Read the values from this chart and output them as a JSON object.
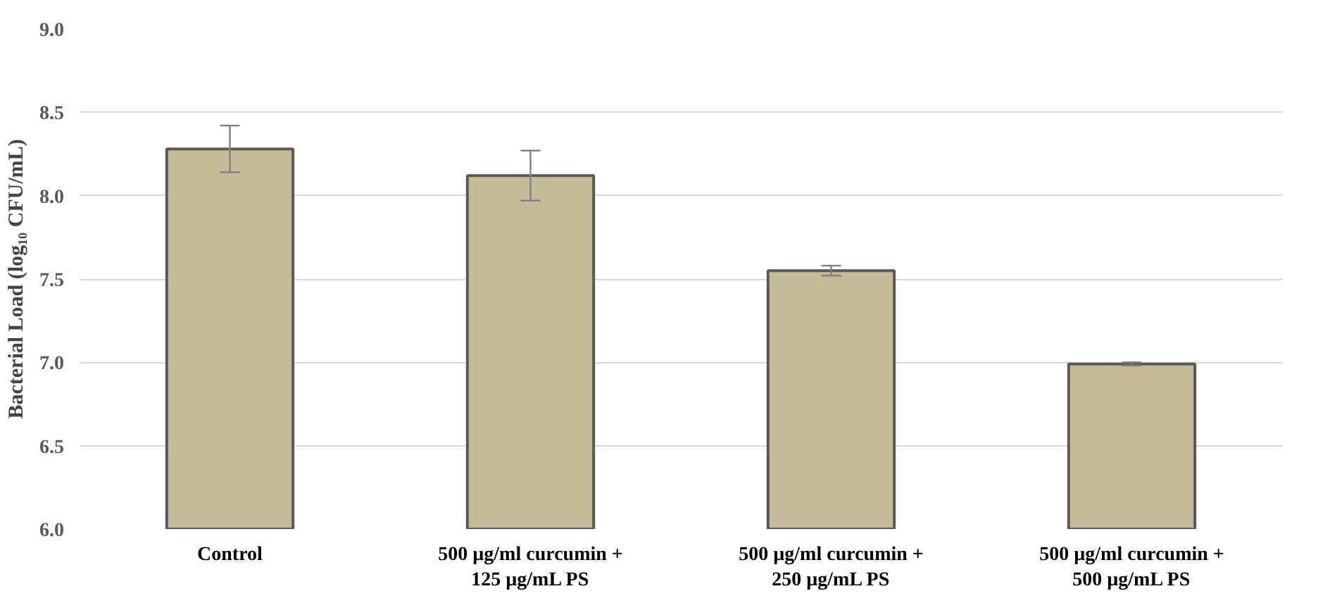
{
  "chart_data": {
    "type": "bar",
    "ylabel": "Bacterial Load (log₁₀ CFU/mL)",
    "categories": [
      "Control",
      "500 µg/ml curcumin +\n125 µg/mL PS",
      "500 µg/ml curcumin +\n250 µg/mL PS",
      "500 µg/ml curcumin +\n500 µg/mL PS"
    ],
    "values": [
      8.28,
      8.12,
      7.55,
      6.99
    ],
    "errors": [
      0.14,
      0.15,
      0.03,
      0.01
    ],
    "color": "#c4bc96",
    "ylim": [
      6.0,
      9.0
    ],
    "yticks": [
      {
        "value": 6.0,
        "label": "6.0"
      },
      {
        "value": 6.5,
        "label": "6.5"
      },
      {
        "value": 7.0,
        "label": "7.0"
      },
      {
        "value": 7.5,
        "label": "7.5"
      },
      {
        "value": 8.0,
        "label": "8.0"
      },
      {
        "value": 8.5,
        "label": "8.5"
      },
      {
        "value": 9.0,
        "label": "9.0"
      }
    ],
    "grid": "y"
  }
}
